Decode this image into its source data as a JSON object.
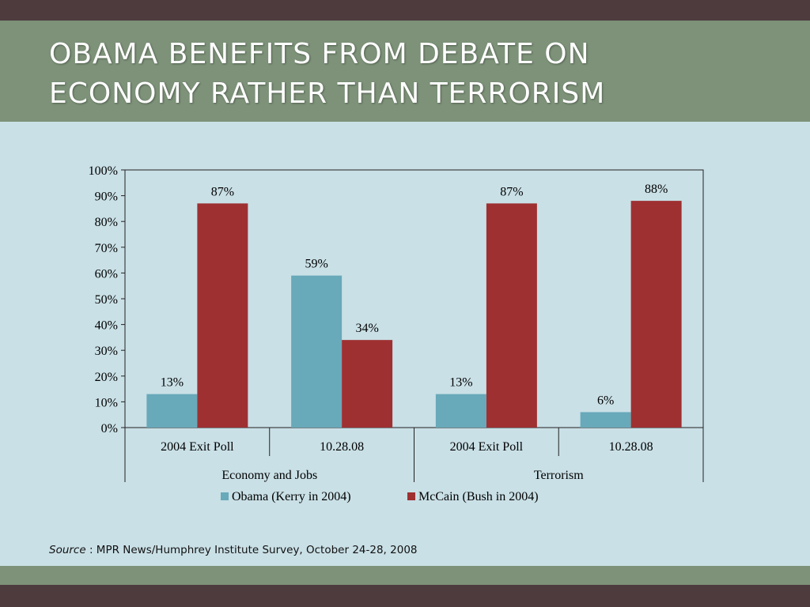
{
  "slide": {
    "title_lines": [
      "OBAMA BENEFITS FROM DEBATE ON",
      "ECONOMY RATHER THAN TERRORISM"
    ],
    "source_label": "Source",
    "source_text": " : MPR News/Humphrey Institute Survey, October 24-28, 2008"
  },
  "colors": {
    "obama": "#68a9ba",
    "mccain": "#9e3032",
    "background": "#c9e0e6",
    "title_band": "#7d9279",
    "dark_band": "#4e3b3e"
  },
  "chart_data": {
    "type": "bar",
    "categories": [
      "2004 Exit Poll",
      "10.28.08",
      "2004 Exit Poll",
      "10.28.08"
    ],
    "groups": [
      {
        "label": "Economy and Jobs",
        "categories": [
          "2004 Exit Poll",
          "10.28.08"
        ]
      },
      {
        "label": "Terrorism",
        "categories": [
          "2004 Exit Poll",
          "10.28.08"
        ]
      }
    ],
    "series": [
      {
        "name": "Obama (Kerry in 2004)",
        "values": [
          13,
          59,
          13,
          6
        ],
        "labels": [
          "13%",
          "59%",
          "13%",
          "6%"
        ]
      },
      {
        "name": "McCain (Bush in 2004)",
        "values": [
          87,
          34,
          87,
          88
        ],
        "labels": [
          "87%",
          "34%",
          "87%",
          "88%"
        ]
      }
    ],
    "ylim": [
      0,
      100
    ],
    "yticks": [
      0,
      10,
      20,
      30,
      40,
      50,
      60,
      70,
      80,
      90,
      100
    ],
    "ytick_labels": [
      "0%",
      "10%",
      "20%",
      "30%",
      "40%",
      "50%",
      "60%",
      "70%",
      "80%",
      "90%",
      "100%"
    ],
    "grid": false,
    "legend_position": "bottom"
  }
}
